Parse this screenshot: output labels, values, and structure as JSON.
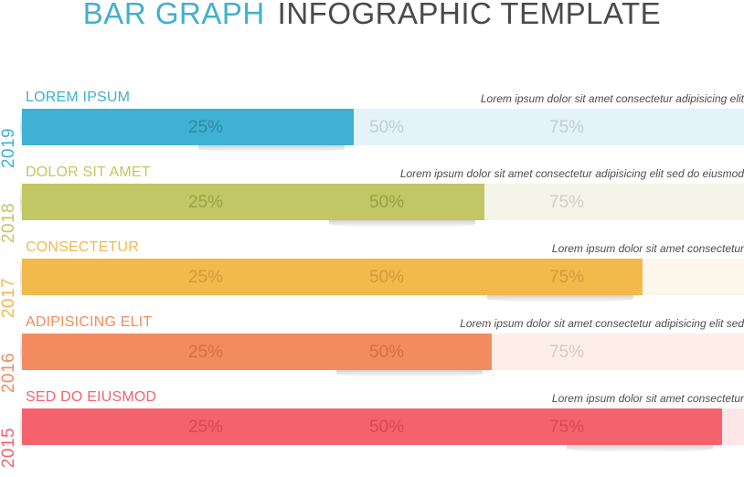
{
  "title": {
    "part1": "BAR GRAPH",
    "part2": "INFOGRAPHIC TEMPLATE"
  },
  "ticks": [
    "25%",
    "50%",
    "75%"
  ],
  "rows": [
    {
      "year": "2019",
      "label": "LOREM IPSUM",
      "desc": "Lorem ipsum dolor sit amet consectetur adipisicing elit",
      "value": 46,
      "color": "#3fb1d2",
      "track": "#e4f3f9",
      "tickIn": "#2f8aa6",
      "tickOut": "#c3cdd2"
    },
    {
      "year": "2018",
      "label": "DOLOR SIT AMET",
      "desc": "Lorem ipsum dolor sit amet consectetur adipisicing elit sed do eiusmod",
      "value": 64,
      "color": "#c1c764",
      "track": "#f4f5e8",
      "tickIn": "#98a04a",
      "tickOut": "#cfd0c8"
    },
    {
      "year": "2017",
      "label": "CONSECTETUR",
      "desc": "Lorem ipsum dolor sit amet consectetur",
      "value": 86,
      "color": "#f2b94c",
      "track": "#fdf6ea",
      "tickIn": "#d5993b",
      "tickOut": "#d8d0c4"
    },
    {
      "year": "2016",
      "label": "ADIPISICING ELIT",
      "desc": "Lorem ipsum dolor sit amet consectetur adipisicing elit sed",
      "value": 65,
      "color": "#f28c5e",
      "track": "#fdeeea",
      "tickIn": "#d46e46",
      "tickOut": "#d6cac6"
    },
    {
      "year": "2015",
      "label": "SED DO EIUSMOD",
      "desc": "Lorem ipsum dolor sit amet consectetur",
      "value": 97,
      "color": "#f4636d",
      "track": "#fde6e8",
      "tickIn": "#d9484f",
      "tickOut": "#d6c6c8"
    }
  ],
  "chart_data": {
    "type": "bar",
    "orientation": "horizontal",
    "title": "BAR GRAPH INFOGRAPHIC TEMPLATE",
    "categories": [
      "2019",
      "2018",
      "2017",
      "2016",
      "2015"
    ],
    "labels": [
      "LOREM IPSUM",
      "DOLOR SIT AMET",
      "CONSECTETUR",
      "ADIPISICING ELIT",
      "SED DO EIUSMOD"
    ],
    "values": [
      46,
      64,
      86,
      65,
      97
    ],
    "xlabel": "",
    "ylabel": "",
    "xlim": [
      0,
      100
    ],
    "tick_labels": [
      "25%",
      "50%",
      "75%"
    ],
    "grid": false,
    "legend": null,
    "colors": [
      "#3fb1d2",
      "#c1c764",
      "#f2b94c",
      "#f28c5e",
      "#f4636d"
    ]
  }
}
